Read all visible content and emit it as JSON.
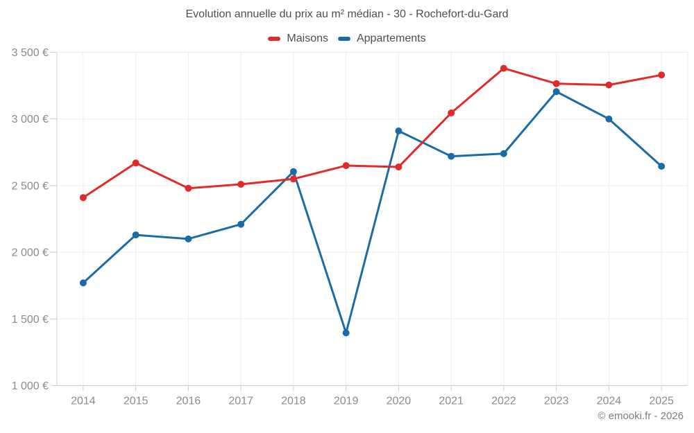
{
  "chart": {
    "title": "Evolution annuelle du prix au m² médian - 30 - Rochefort-du-Gard",
    "legend": [
      {
        "label": "Maisons",
        "color": "#e02b2b"
      },
      {
        "label": "Appartements",
        "color": "#1b6ca6"
      }
    ]
  },
  "chart_data": {
    "type": "line",
    "title": "Evolution annuelle du prix au m² médian - 30 - Rochefort-du-Gard",
    "categories": [
      "2014",
      "2015",
      "2016",
      "2017",
      "2018",
      "2019",
      "2020",
      "2021",
      "2022",
      "2023",
      "2024",
      "2025"
    ],
    "series": [
      {
        "name": "Maisons",
        "color": "#e02b2b",
        "values": [
          2410,
          2670,
          2480,
          2510,
          2550,
          2650,
          2640,
          3045,
          3380,
          3265,
          3255,
          3330
        ]
      },
      {
        "name": "Appartements",
        "color": "#1b6ca6",
        "values": [
          1770,
          2130,
          2100,
          2210,
          2605,
          1395,
          2910,
          2720,
          2740,
          3205,
          3000,
          2645
        ]
      }
    ],
    "xlabel": "",
    "ylabel": "",
    "ylim": [
      1000,
      3500
    ],
    "y_ticks": [
      1000,
      1500,
      2000,
      2500,
      3000,
      3500
    ],
    "y_tick_labels": [
      "1 000 €",
      "1 500 €",
      "2 000 €",
      "2 500 €",
      "3 000 €",
      "3 500 €"
    ],
    "currency_suffix": "€",
    "grid": true,
    "legend_position": "top",
    "marker_radius": 5,
    "line_width": 3
  },
  "footer": {
    "copyright": "© emooki.fr - 2026"
  }
}
